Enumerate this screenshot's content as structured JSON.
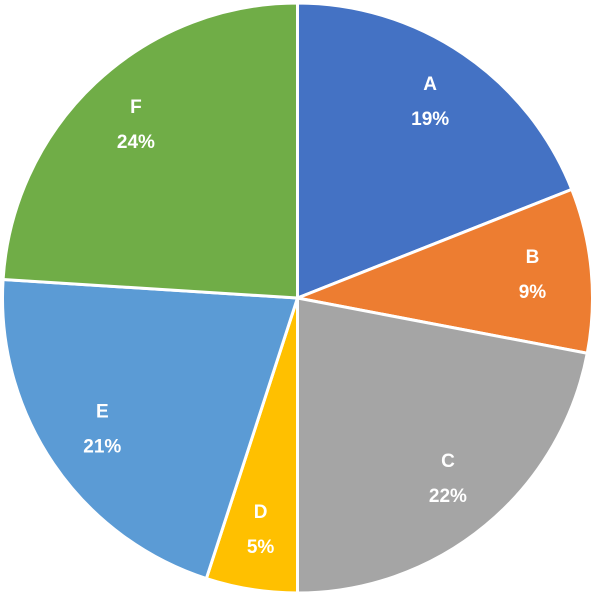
{
  "chart_data": {
    "type": "pie",
    "categories": [
      "A",
      "B",
      "C",
      "D",
      "E",
      "F"
    ],
    "values": [
      19,
      9,
      22,
      5,
      21,
      24
    ],
    "value_labels": [
      "19%",
      "9%",
      "22%",
      "5%",
      "21%",
      "24%"
    ],
    "colors": [
      "#4472c4",
      "#ed7d31",
      "#a5a5a5",
      "#ffc000",
      "#5b9bd5",
      "#70ad47"
    ]
  }
}
